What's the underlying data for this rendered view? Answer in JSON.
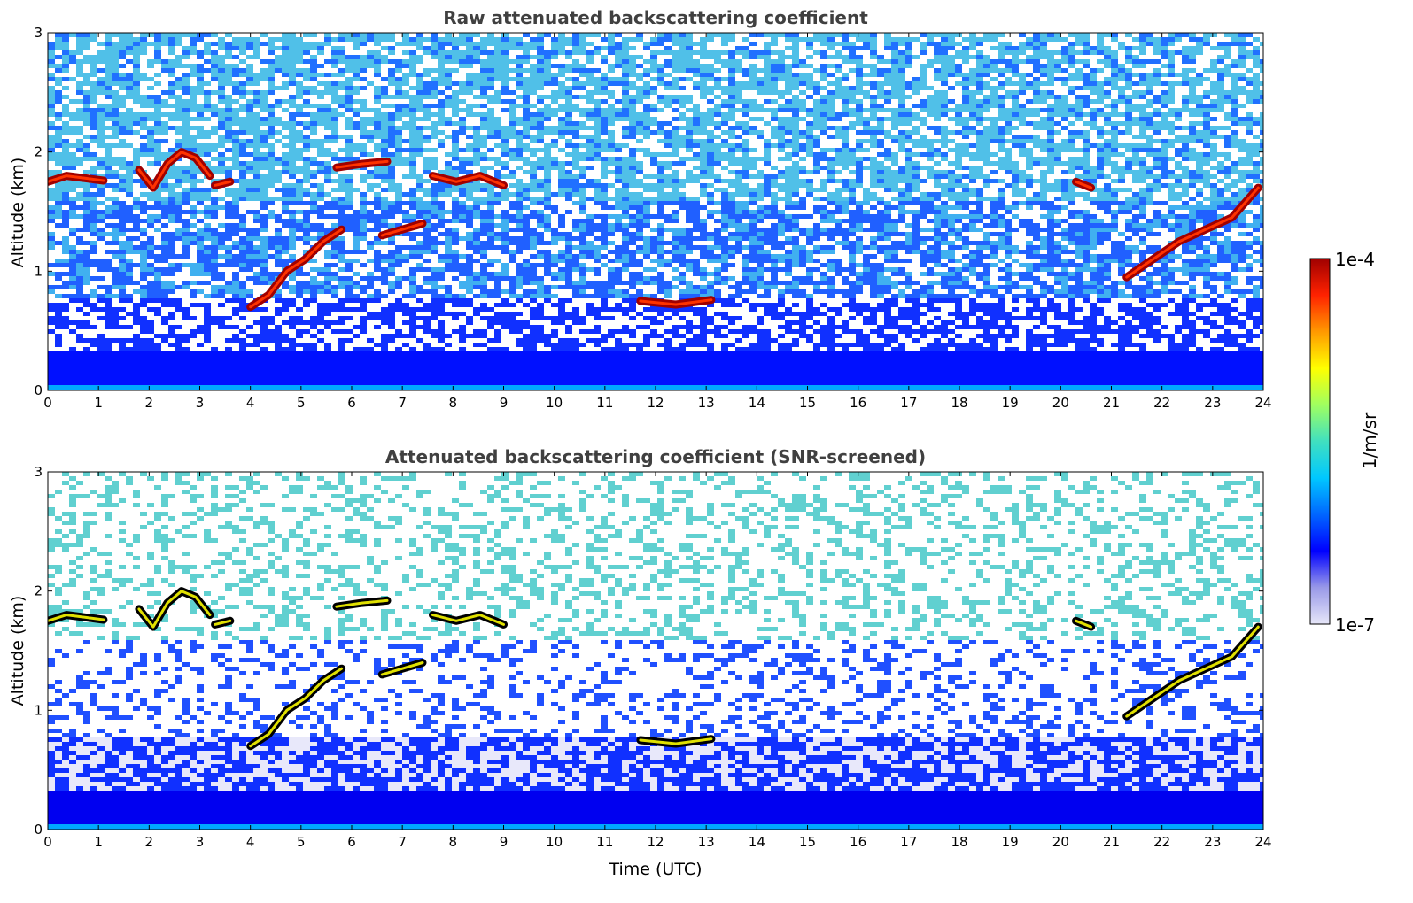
{
  "chart_data": [
    {
      "type": "heatmap",
      "title": "Raw attenuated backscattering coefficient",
      "xlabel": "",
      "ylabel": "Altitude (km)",
      "xlim": [
        0,
        24
      ],
      "ylim": [
        0,
        3
      ],
      "xticks": [
        "0",
        "1",
        "2",
        "3",
        "4",
        "5",
        "6",
        "7",
        "8",
        "9",
        "10",
        "11",
        "12",
        "13",
        "14",
        "15",
        "16",
        "17",
        "18",
        "19",
        "20",
        "21",
        "22",
        "23",
        "24"
      ],
      "yticks": [
        "0",
        "1",
        "2",
        "3"
      ],
      "screened": false,
      "cloud_layers": [
        {
          "t0": 0.0,
          "t1": 1.1,
          "alt": [
            1.75,
            1.8,
            1.78,
            1.76
          ]
        },
        {
          "t0": 1.8,
          "t1": 3.2,
          "alt": [
            1.85,
            1.7,
            1.9,
            2.0,
            1.95,
            1.8
          ]
        },
        {
          "t0": 3.3,
          "t1": 3.6,
          "alt": [
            1.72,
            1.75
          ]
        },
        {
          "t0": 5.7,
          "t1": 6.7,
          "alt": [
            1.87,
            1.9,
            1.92
          ]
        },
        {
          "t0": 7.6,
          "t1": 9.0,
          "alt": [
            1.8,
            1.75,
            1.8,
            1.72
          ]
        },
        {
          "t0": 6.6,
          "t1": 7.4,
          "alt": [
            1.3,
            1.35,
            1.4
          ]
        },
        {
          "t0": 4.0,
          "t1": 5.8,
          "alt": [
            0.7,
            0.8,
            1.0,
            1.1,
            1.25,
            1.35
          ]
        },
        {
          "t0": 11.7,
          "t1": 13.1,
          "alt": [
            0.75,
            0.72,
            0.76
          ]
        },
        {
          "t0": 20.3,
          "t1": 20.6,
          "alt": [
            1.75,
            1.7
          ]
        },
        {
          "t0": 21.3,
          "t1": 23.9,
          "alt": [
            0.95,
            1.1,
            1.25,
            1.35,
            1.45,
            1.7
          ]
        }
      ]
    },
    {
      "type": "heatmap",
      "title": "Attenuated backscattering coefficient (SNR-screened)",
      "xlabel": "Time (UTC)",
      "ylabel": "Altitude (km)",
      "xlim": [
        0,
        24
      ],
      "ylim": [
        0,
        3
      ],
      "xticks": [
        "0",
        "1",
        "2",
        "3",
        "4",
        "5",
        "6",
        "7",
        "8",
        "9",
        "10",
        "11",
        "12",
        "13",
        "14",
        "15",
        "16",
        "17",
        "18",
        "19",
        "20",
        "21",
        "22",
        "23",
        "24"
      ],
      "yticks": [
        "0",
        "1",
        "2",
        "3"
      ],
      "screened": true,
      "cloud_layers": [
        {
          "t0": 0.0,
          "t1": 1.1,
          "alt": [
            1.75,
            1.8,
            1.78,
            1.76
          ]
        },
        {
          "t0": 1.8,
          "t1": 3.2,
          "alt": [
            1.85,
            1.7,
            1.9,
            2.0,
            1.95,
            1.8
          ]
        },
        {
          "t0": 3.3,
          "t1": 3.6,
          "alt": [
            1.72,
            1.75
          ]
        },
        {
          "t0": 5.7,
          "t1": 6.7,
          "alt": [
            1.87,
            1.9,
            1.92
          ]
        },
        {
          "t0": 7.6,
          "t1": 9.0,
          "alt": [
            1.8,
            1.75,
            1.8,
            1.72
          ]
        },
        {
          "t0": 6.6,
          "t1": 7.4,
          "alt": [
            1.3,
            1.35,
            1.4
          ]
        },
        {
          "t0": 4.0,
          "t1": 5.8,
          "alt": [
            0.7,
            0.8,
            1.0,
            1.1,
            1.25,
            1.35
          ]
        },
        {
          "t0": 11.7,
          "t1": 13.1,
          "alt": [
            0.75,
            0.72,
            0.76
          ]
        },
        {
          "t0": 20.3,
          "t1": 20.6,
          "alt": [
            1.75,
            1.7
          ]
        },
        {
          "t0": 21.3,
          "t1": 23.9,
          "alt": [
            0.95,
            1.1,
            1.25,
            1.35,
            1.45,
            1.7
          ]
        }
      ]
    }
  ],
  "colorbar": {
    "min_label": "1e-7",
    "max_label": "1e-4",
    "unit": "1/m/sr",
    "scale": "log",
    "colors": [
      "#e6e6f8",
      "#9999e8",
      "#0000ff",
      "#0066ff",
      "#00c8ff",
      "#40e0c0",
      "#a0ff60",
      "#ffff00",
      "#ff9900",
      "#ff2200",
      "#a00000"
    ]
  }
}
